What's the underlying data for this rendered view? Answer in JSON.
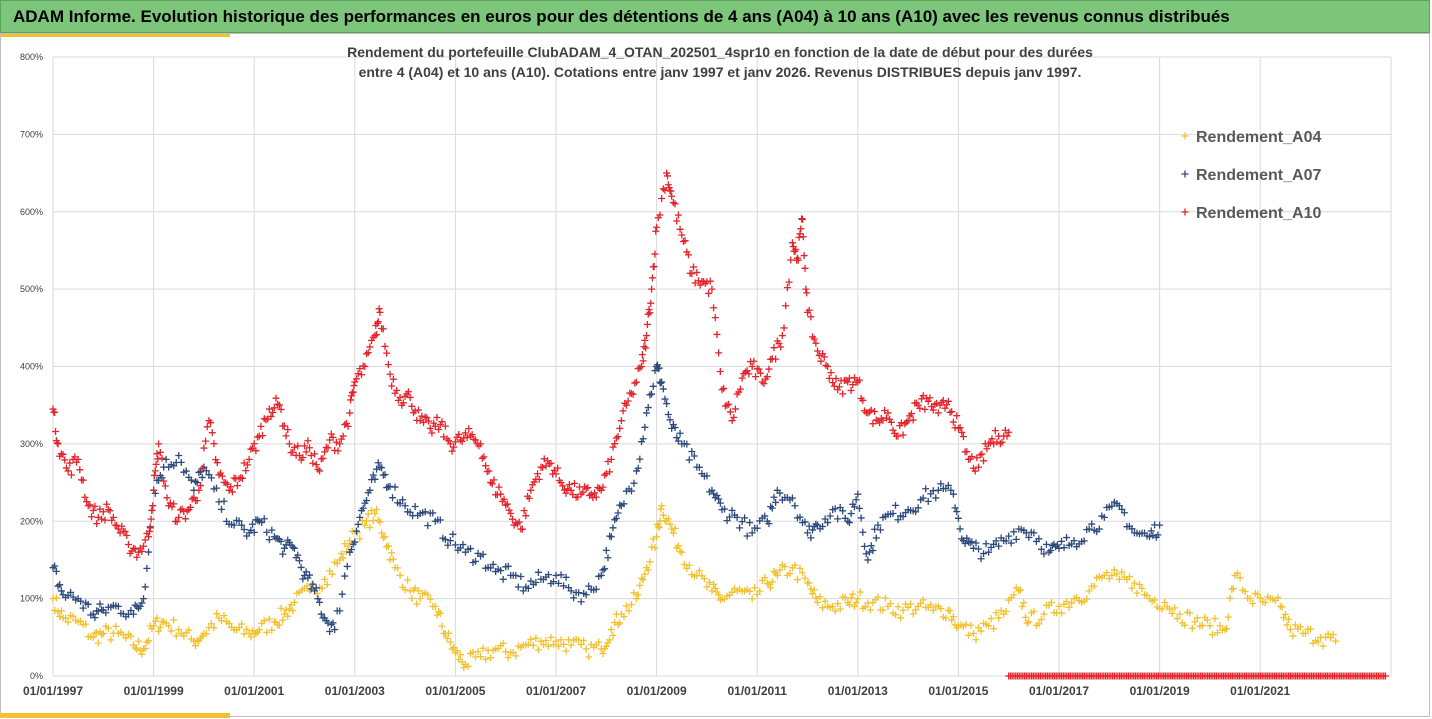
{
  "header": {
    "title": "ADAM Informe. Evolution historique des performances en euros pour des détentions de 4 ans (A04) à 10 ans (A10) avec les revenus connus distribués"
  },
  "colors": {
    "A04": "#f2c12e",
    "A07": "#2e4a7d",
    "A10": "#e3242b",
    "banner": "#7dc57a",
    "grid": "#d9d9d9"
  },
  "chart_data": {
    "type": "scatter",
    "subtitle_line1": "Rendement du portefeuille ClubADAM_4_OTAN_202501_4spr10  en fonction de la date de début pour des durées",
    "subtitle_line2": "entre 4 (A04) et 10 ans (A10). Cotations entre janv 1997 et janv 2026. Revenus DISTRIBUES depuis janv 1997.",
    "xlabel": "",
    "ylabel": "",
    "xlim": [
      1997,
      2023.6
    ],
    "ylim": [
      0,
      800
    ],
    "y_ticks": [
      "0%",
      "100%",
      "200%",
      "300%",
      "400%",
      "500%",
      "600%",
      "700%",
      "800%"
    ],
    "x_ticks": [
      "01/01/1997",
      "01/01/1999",
      "01/01/2001",
      "01/01/2003",
      "01/01/2005",
      "01/01/2007",
      "01/01/2009",
      "01/01/2011",
      "01/01/2013",
      "01/01/2015",
      "01/01/2017",
      "01/01/2019",
      "01/01/2021"
    ],
    "x_tick_values": [
      1997,
      1999,
      2001,
      2003,
      2005,
      2007,
      2009,
      2011,
      2013,
      2015,
      2017,
      2019,
      2021
    ],
    "legend_position": "right",
    "series": [
      {
        "name": "Rendement_A04",
        "marker": "+",
        "points": [
          [
            1997.0,
            100
          ],
          [
            1997.2,
            75
          ],
          [
            1997.5,
            70
          ],
          [
            1997.8,
            50
          ],
          [
            1998.0,
            55
          ],
          [
            1998.3,
            55
          ],
          [
            1998.6,
            40
          ],
          [
            1998.8,
            35
          ],
          [
            1999.0,
            65
          ],
          [
            1999.2,
            70
          ],
          [
            1999.5,
            60
          ],
          [
            1999.8,
            45
          ],
          [
            2000.0,
            55
          ],
          [
            2000.3,
            75
          ],
          [
            2000.6,
            60
          ],
          [
            2000.9,
            55
          ],
          [
            2001.1,
            60
          ],
          [
            2001.4,
            70
          ],
          [
            2001.6,
            80
          ],
          [
            2001.8,
            95
          ],
          [
            2002.1,
            110
          ],
          [
            2002.4,
            125
          ],
          [
            2002.7,
            150
          ],
          [
            2002.9,
            175
          ],
          [
            2003.2,
            195
          ],
          [
            2003.4,
            210
          ],
          [
            2003.6,
            180
          ],
          [
            2003.8,
            140
          ],
          [
            2004.1,
            110
          ],
          [
            2004.3,
            100
          ],
          [
            2004.6,
            90
          ],
          [
            2004.8,
            55
          ],
          [
            2005.0,
            30
          ],
          [
            2005.2,
            15
          ],
          [
            2005.5,
            25
          ],
          [
            2005.8,
            35
          ],
          [
            2006.1,
            30
          ],
          [
            2006.4,
            40
          ],
          [
            2006.7,
            45
          ],
          [
            2007.0,
            45
          ],
          [
            2007.3,
            40
          ],
          [
            2007.6,
            35
          ],
          [
            2007.9,
            35
          ],
          [
            2008.1,
            60
          ],
          [
            2008.3,
            80
          ],
          [
            2008.6,
            100
          ],
          [
            2008.8,
            140
          ],
          [
            2009.0,
            180
          ],
          [
            2009.1,
            220
          ],
          [
            2009.3,
            190
          ],
          [
            2009.5,
            160
          ],
          [
            2009.8,
            130
          ],
          [
            2010.1,
            110
          ],
          [
            2010.3,
            100
          ],
          [
            2010.6,
            110
          ],
          [
            2010.9,
            100
          ],
          [
            2011.2,
            120
          ],
          [
            2011.4,
            130
          ],
          [
            2011.7,
            140
          ],
          [
            2012.0,
            120
          ],
          [
            2012.2,
            95
          ],
          [
            2012.5,
            90
          ],
          [
            2012.8,
            95
          ],
          [
            2013.0,
            100
          ],
          [
            2013.3,
            95
          ],
          [
            2013.6,
            90
          ],
          [
            2013.9,
            85
          ],
          [
            2014.2,
            90
          ],
          [
            2014.5,
            85
          ],
          [
            2014.8,
            85
          ],
          [
            2015.0,
            65
          ],
          [
            2015.3,
            55
          ],
          [
            2015.6,
            65
          ],
          [
            2015.9,
            80
          ],
          [
            2016.2,
            110
          ],
          [
            2016.4,
            70
          ],
          [
            2016.7,
            80
          ],
          [
            2017.0,
            90
          ],
          [
            2017.3,
            100
          ],
          [
            2017.6,
            110
          ],
          [
            2017.9,
            130
          ],
          [
            2018.2,
            125
          ],
          [
            2018.5,
            120
          ],
          [
            2018.8,
            100
          ],
          [
            2019.1,
            95
          ],
          [
            2019.4,
            80
          ],
          [
            2019.7,
            70
          ],
          [
            2020.0,
            65
          ],
          [
            2020.3,
            60
          ],
          [
            2020.5,
            130
          ],
          [
            2020.8,
            100
          ],
          [
            2021.1,
            95
          ],
          [
            2021.4,
            90
          ],
          [
            2021.6,
            60
          ],
          [
            2021.9,
            55
          ],
          [
            2022.2,
            50
          ],
          [
            2022.5,
            45
          ]
        ]
      },
      {
        "name": "Rendement_A07",
        "marker": "+",
        "points": [
          [
            1997.0,
            140
          ],
          [
            1997.2,
            105
          ],
          [
            1997.5,
            100
          ],
          [
            1997.8,
            80
          ],
          [
            1998.0,
            85
          ],
          [
            1998.3,
            90
          ],
          [
            1998.6,
            80
          ],
          [
            1998.8,
            100
          ],
          [
            1999.0,
            240
          ],
          [
            1999.2,
            270
          ],
          [
            1999.5,
            285
          ],
          [
            1999.8,
            240
          ],
          [
            2000.0,
            270
          ],
          [
            2000.3,
            225
          ],
          [
            2000.6,
            195
          ],
          [
            2000.9,
            185
          ],
          [
            2001.1,
            200
          ],
          [
            2001.4,
            180
          ],
          [
            2001.6,
            165
          ],
          [
            2001.8,
            165
          ],
          [
            2002.0,
            130
          ],
          [
            2002.2,
            110
          ],
          [
            2002.4,
            75
          ],
          [
            2002.6,
            60
          ],
          [
            2002.9,
            160
          ],
          [
            2003.1,
            205
          ],
          [
            2003.3,
            240
          ],
          [
            2003.5,
            270
          ],
          [
            2003.7,
            245
          ],
          [
            2004.0,
            220
          ],
          [
            2004.3,
            210
          ],
          [
            2004.6,
            200
          ],
          [
            2004.9,
            175
          ],
          [
            2005.2,
            160
          ],
          [
            2005.5,
            155
          ],
          [
            2005.8,
            135
          ],
          [
            2006.1,
            130
          ],
          [
            2006.4,
            115
          ],
          [
            2006.7,
            125
          ],
          [
            2007.0,
            130
          ],
          [
            2007.3,
            110
          ],
          [
            2007.6,
            105
          ],
          [
            2007.9,
            130
          ],
          [
            2008.1,
            180
          ],
          [
            2008.3,
            220
          ],
          [
            2008.6,
            265
          ],
          [
            2008.8,
            340
          ],
          [
            2009.0,
            400
          ],
          [
            2009.1,
            380
          ],
          [
            2009.3,
            320
          ],
          [
            2009.5,
            300
          ],
          [
            2009.8,
            270
          ],
          [
            2010.1,
            240
          ],
          [
            2010.3,
            215
          ],
          [
            2010.6,
            205
          ],
          [
            2010.9,
            185
          ],
          [
            2011.2,
            200
          ],
          [
            2011.4,
            240
          ],
          [
            2011.7,
            230
          ],
          [
            2012.0,
            185
          ],
          [
            2012.2,
            195
          ],
          [
            2012.5,
            215
          ],
          [
            2012.8,
            200
          ],
          [
            2013.0,
            235
          ],
          [
            2013.2,
            150
          ],
          [
            2013.4,
            195
          ],
          [
            2013.7,
            210
          ],
          [
            2014.0,
            215
          ],
          [
            2014.3,
            230
          ],
          [
            2014.6,
            240
          ],
          [
            2014.9,
            235
          ],
          [
            2015.1,
            175
          ],
          [
            2015.3,
            165
          ],
          [
            2015.6,
            160
          ],
          [
            2015.9,
            175
          ],
          [
            2016.2,
            190
          ],
          [
            2016.5,
            185
          ],
          [
            2016.8,
            160
          ],
          [
            2017.0,
            165
          ],
          [
            2017.3,
            175
          ],
          [
            2017.6,
            190
          ],
          [
            2017.9,
            205
          ],
          [
            2018.2,
            220
          ],
          [
            2018.5,
            185
          ],
          [
            2018.8,
            180
          ],
          [
            2019.0,
            195
          ]
        ]
      },
      {
        "name": "Rendement_A10",
        "marker": "+",
        "points": [
          [
            1997.0,
            345
          ],
          [
            1997.1,
            300
          ],
          [
            1997.3,
            265
          ],
          [
            1997.5,
            280
          ],
          [
            1997.7,
            220
          ],
          [
            1997.9,
            205
          ],
          [
            1998.1,
            215
          ],
          [
            1998.3,
            190
          ],
          [
            1998.5,
            170
          ],
          [
            1998.7,
            160
          ],
          [
            1998.9,
            180
          ],
          [
            1999.0,
            240
          ],
          [
            1999.1,
            300
          ],
          [
            1999.3,
            220
          ],
          [
            1999.5,
            205
          ],
          [
            1999.7,
            215
          ],
          [
            1999.9,
            240
          ],
          [
            2000.1,
            330
          ],
          [
            2000.3,
            260
          ],
          [
            2000.5,
            240
          ],
          [
            2000.7,
            255
          ],
          [
            2000.9,
            280
          ],
          [
            2001.1,
            310
          ],
          [
            2001.3,
            345
          ],
          [
            2001.5,
            350
          ],
          [
            2001.7,
            300
          ],
          [
            2001.9,
            285
          ],
          [
            2002.1,
            295
          ],
          [
            2002.3,
            265
          ],
          [
            2002.5,
            305
          ],
          [
            2002.7,
            300
          ],
          [
            2002.9,
            340
          ],
          [
            2003.0,
            380
          ],
          [
            2003.2,
            400
          ],
          [
            2003.4,
            440
          ],
          [
            2003.5,
            470
          ],
          [
            2003.7,
            390
          ],
          [
            2003.9,
            360
          ],
          [
            2004.1,
            360
          ],
          [
            2004.3,
            330
          ],
          [
            2004.5,
            320
          ],
          [
            2004.7,
            325
          ],
          [
            2004.9,
            300
          ],
          [
            2005.1,
            305
          ],
          [
            2005.3,
            310
          ],
          [
            2005.5,
            300
          ],
          [
            2005.7,
            250
          ],
          [
            2005.9,
            235
          ],
          [
            2006.1,
            210
          ],
          [
            2006.3,
            190
          ],
          [
            2006.5,
            240
          ],
          [
            2006.7,
            270
          ],
          [
            2006.9,
            275
          ],
          [
            2007.1,
            250
          ],
          [
            2007.3,
            240
          ],
          [
            2007.5,
            235
          ],
          [
            2007.7,
            235
          ],
          [
            2007.9,
            240
          ],
          [
            2008.1,
            280
          ],
          [
            2008.3,
            330
          ],
          [
            2008.5,
            365
          ],
          [
            2008.7,
            400
          ],
          [
            2008.8,
            440
          ],
          [
            2008.9,
            500
          ],
          [
            2009.0,
            580
          ],
          [
            2009.2,
            650
          ],
          [
            2009.3,
            620
          ],
          [
            2009.5,
            570
          ],
          [
            2009.7,
            520
          ],
          [
            2009.9,
            510
          ],
          [
            2010.1,
            500
          ],
          [
            2010.3,
            370
          ],
          [
            2010.5,
            330
          ],
          [
            2010.7,
            385
          ],
          [
            2010.9,
            400
          ],
          [
            2011.1,
            380
          ],
          [
            2011.3,
            410
          ],
          [
            2011.5,
            440
          ],
          [
            2011.7,
            560
          ],
          [
            2011.8,
            540
          ],
          [
            2011.9,
            590
          ],
          [
            2012.0,
            470
          ],
          [
            2012.2,
            420
          ],
          [
            2012.4,
            400
          ],
          [
            2012.6,
            370
          ],
          [
            2012.8,
            380
          ],
          [
            2013.0,
            380
          ],
          [
            2013.2,
            340
          ],
          [
            2013.4,
            330
          ],
          [
            2013.6,
            340
          ],
          [
            2013.8,
            310
          ],
          [
            2014.0,
            330
          ],
          [
            2014.2,
            350
          ],
          [
            2014.4,
            355
          ],
          [
            2014.6,
            340
          ],
          [
            2014.8,
            355
          ],
          [
            2015.0,
            320
          ],
          [
            2015.2,
            280
          ],
          [
            2015.4,
            270
          ],
          [
            2015.6,
            300
          ],
          [
            2015.8,
            310
          ],
          [
            2016.0,
            315
          ]
        ]
      }
    ],
    "zero_band": {
      "series": "Rendement_A10",
      "value": 0,
      "x_start": 2016.0,
      "x_end": 2023.5
    }
  }
}
